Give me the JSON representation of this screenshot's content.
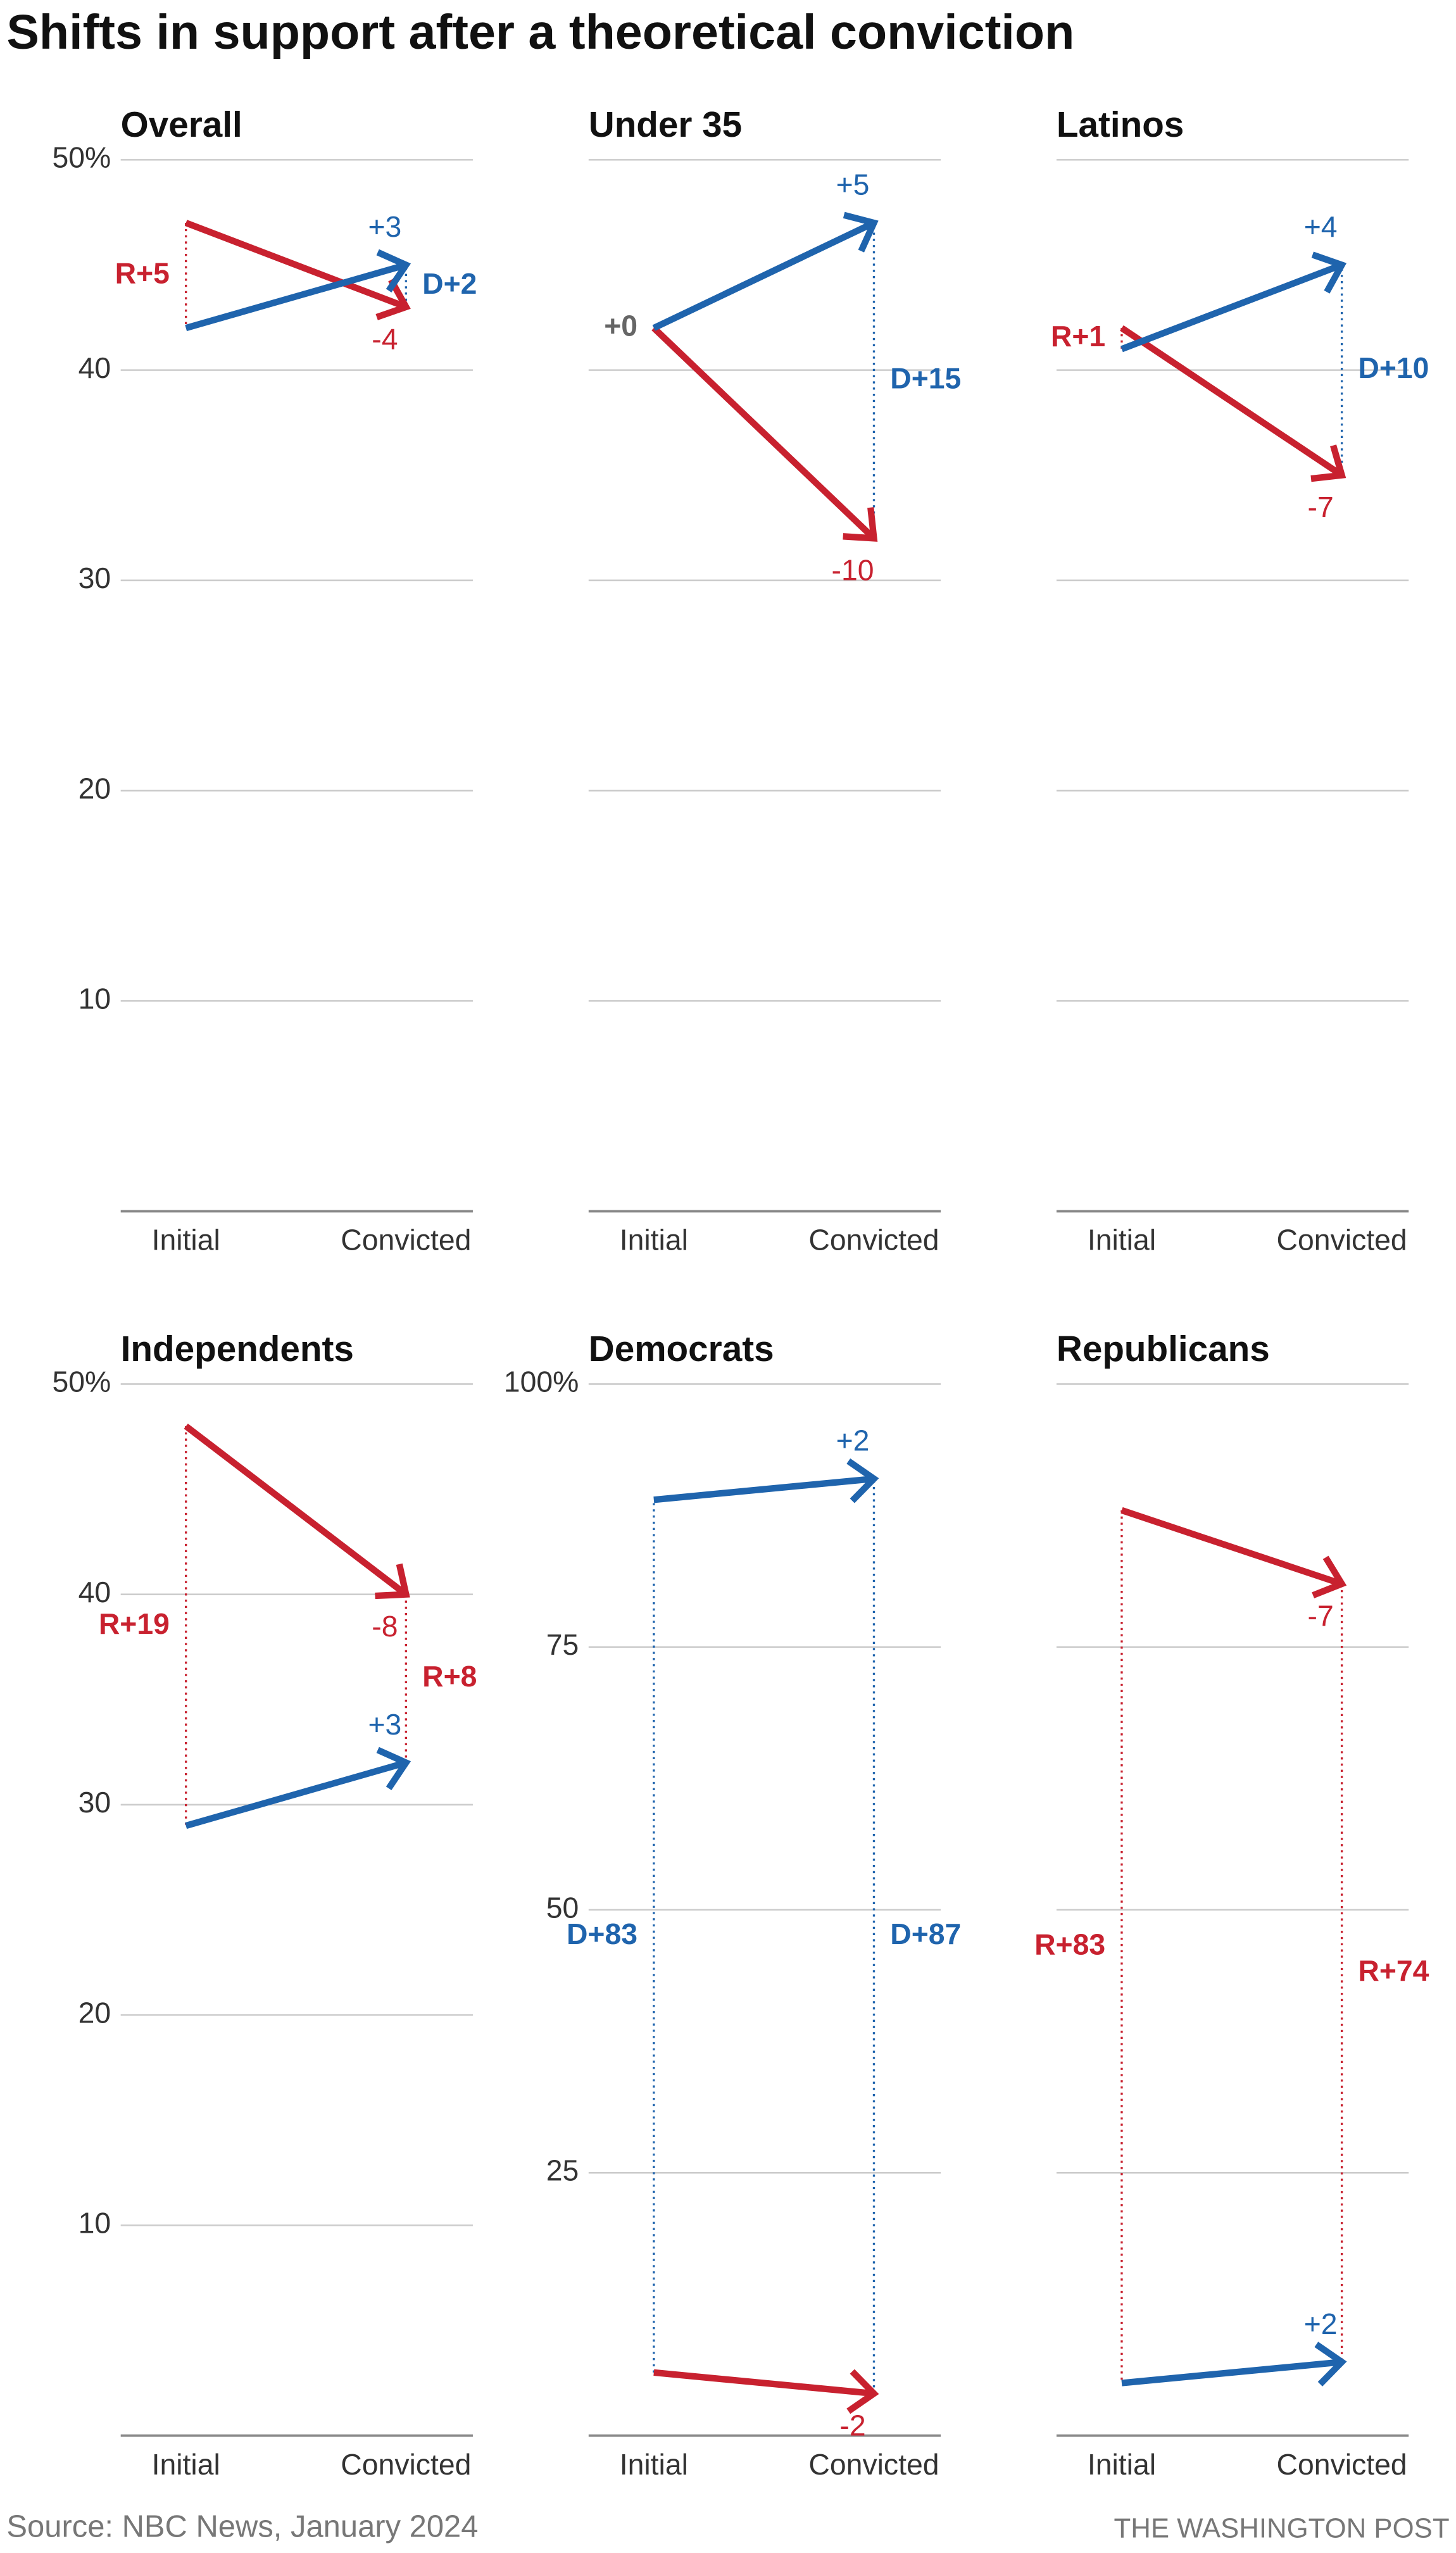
{
  "title": "Shifts in support after a theoretical conviction",
  "source": "Source: NBC News, January 2024",
  "credit": "THE WASHINGTON POST",
  "chart_data": [
    {
      "type": "line",
      "title": "Overall",
      "categories": [
        "Initial",
        "Convicted"
      ],
      "ylim": [
        0,
        50
      ],
      "yticks": [
        10,
        20,
        30,
        40,
        {
          "value": 50,
          "label": "50%"
        }
      ],
      "tick_labels": true,
      "grid": true,
      "series": [
        {
          "color": "#c8212f",
          "values": [
            47,
            43
          ],
          "change_label": "-4"
        },
        {
          "color": "#1f64ad",
          "values": [
            42,
            45
          ],
          "change_label": "+3"
        }
      ],
      "margin_labels": [
        "R+5",
        "D+2"
      ]
    },
    {
      "type": "line",
      "title": "Under 35",
      "categories": [
        "Initial",
        "Convicted"
      ],
      "ylim": [
        0,
        50
      ],
      "yticks": [
        10,
        20,
        30,
        40,
        50
      ],
      "tick_labels": false,
      "grid": true,
      "series": [
        {
          "color": "#c8212f",
          "values": [
            42,
            32
          ],
          "change_label": "-10"
        },
        {
          "color": "#1f64ad",
          "values": [
            42,
            47
          ],
          "change_label": "+5"
        }
      ],
      "margin_labels": [
        "+0",
        "D+15"
      ]
    },
    {
      "type": "line",
      "title": "Latinos",
      "categories": [
        "Initial",
        "Convicted"
      ],
      "ylim": [
        0,
        50
      ],
      "yticks": [
        10,
        20,
        30,
        40,
        50
      ],
      "tick_labels": false,
      "grid": true,
      "series": [
        {
          "color": "#c8212f",
          "values": [
            42,
            35
          ],
          "change_label": "-7"
        },
        {
          "color": "#1f64ad",
          "values": [
            41,
            45
          ],
          "change_label": "+4"
        }
      ],
      "margin_labels": [
        "R+1",
        "D+10"
      ]
    },
    {
      "type": "line",
      "title": "Independents",
      "categories": [
        "Initial",
        "Convicted"
      ],
      "ylim": [
        0,
        50
      ],
      "yticks": [
        10,
        20,
        30,
        40,
        {
          "value": 50,
          "label": "50%"
        }
      ],
      "tick_labels": true,
      "grid": true,
      "series": [
        {
          "color": "#c8212f",
          "values": [
            48,
            40
          ],
          "change_label": "-8"
        },
        {
          "color": "#1f64ad",
          "values": [
            29,
            32
          ],
          "change_label": "+3"
        }
      ],
      "margin_labels": [
        "R+19",
        "R+8"
      ]
    },
    {
      "type": "line",
      "title": "Democrats",
      "categories": [
        "Initial",
        "Convicted"
      ],
      "ylim": [
        0,
        100
      ],
      "yticks": [
        25,
        50,
        75,
        {
          "value": 100,
          "label": "100%"
        }
      ],
      "tick_labels": true,
      "grid": true,
      "series": [
        {
          "color": "#c8212f",
          "values": [
            6,
            4
          ],
          "change_label": "-2"
        },
        {
          "color": "#1f64ad",
          "values": [
            89,
            91
          ],
          "change_label": "+2"
        }
      ],
      "margin_labels": [
        "D+83",
        "D+87"
      ]
    },
    {
      "type": "line",
      "title": "Republicans",
      "categories": [
        "Initial",
        "Convicted"
      ],
      "ylim": [
        0,
        100
      ],
      "yticks": [
        25,
        50,
        75,
        100
      ],
      "tick_labels": false,
      "grid": true,
      "series": [
        {
          "color": "#c8212f",
          "values": [
            88,
            81
          ],
          "change_label": "-7"
        },
        {
          "color": "#1f64ad",
          "values": [
            5,
            7
          ],
          "change_label": "+2"
        }
      ],
      "margin_labels": [
        "R+83",
        "R+74"
      ]
    }
  ]
}
